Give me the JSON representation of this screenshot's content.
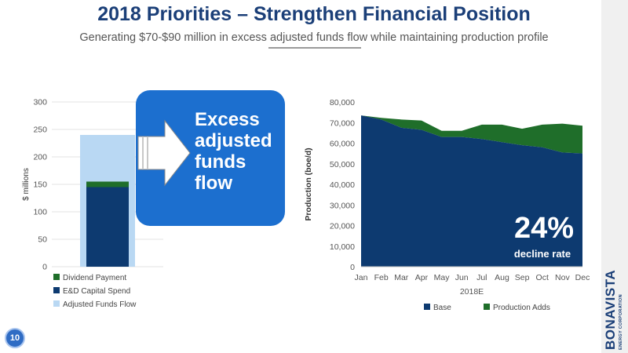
{
  "slide": {
    "title": "2018 Priorities – Strengthen Financial Position",
    "subtitle": "Generating $70-$90 million in excess adjusted funds flow while maintaining production profile",
    "page_number": "10"
  },
  "callout": {
    "lines": [
      "Excess",
      "adjusted",
      "funds",
      "flow"
    ]
  },
  "decline": {
    "value": "24%",
    "label": "decline rate"
  },
  "logo": {
    "main": "BONAVISTA",
    "sub": "ENERGY CORPORATION"
  },
  "colors": {
    "navy": "#0d3a70",
    "green": "#1f6e2a",
    "light_blue": "#b9d8f3",
    "accent_blue": "#1c6fcf",
    "title_blue": "#1b3f78"
  },
  "chart_data": [
    {
      "type": "bar",
      "ylabel": "$ millions",
      "ylim": [
        0,
        300
      ],
      "yticks": [
        0,
        50,
        100,
        150,
        200,
        250,
        300
      ],
      "categories": [
        ""
      ],
      "series": [
        {
          "name": "Dividend Payment",
          "values": [
            10
          ],
          "color": "#1f6e2a"
        },
        {
          "name": "E&D Capital Spend",
          "values": [
            145
          ],
          "color": "#0d3a70"
        },
        {
          "name": "Adjusted Funds Flow",
          "values": [
            240
          ],
          "color": "#b9d8f3"
        }
      ],
      "legend_position": "bottom",
      "grid": true
    },
    {
      "type": "area",
      "ylabel": "Production (boe/d)",
      "xlabel": "2018E",
      "ylim": [
        0,
        80000
      ],
      "yticks": [
        "0",
        "10,000",
        "20,000",
        "30,000",
        "40,000",
        "50,000",
        "60,000",
        "70,000",
        "80,000"
      ],
      "ytick_values": [
        0,
        10000,
        20000,
        30000,
        40000,
        50000,
        60000,
        70000,
        80000
      ],
      "categories": [
        "Jan",
        "Feb",
        "Mar",
        "Apr",
        "May",
        "Jun",
        "Jul",
        "Aug",
        "Sep",
        "Oct",
        "Nov",
        "Dec"
      ],
      "series": [
        {
          "name": "Base",
          "values": [
            73500,
            71500,
            67500,
            66500,
            63000,
            63000,
            62000,
            60500,
            59000,
            58000,
            55500,
            55000
          ],
          "color": "#0d3a70"
        },
        {
          "name": "Production Adds",
          "values": [
            0,
            800,
            4000,
            4500,
            3000,
            3000,
            7000,
            8500,
            8000,
            11000,
            14000,
            13500
          ],
          "color": "#1f6e2a"
        }
      ],
      "stacked": true,
      "legend_position": "bottom",
      "grid": false
    }
  ]
}
